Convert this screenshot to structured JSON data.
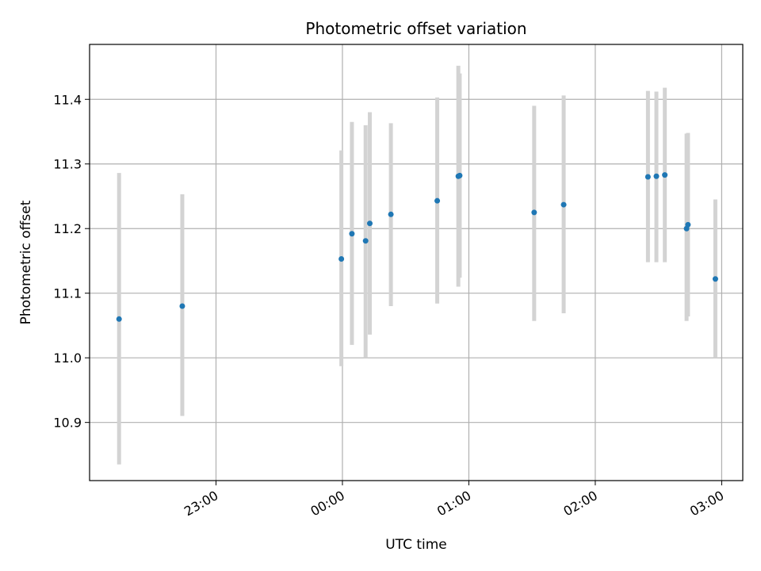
{
  "chart_data": {
    "type": "scatter",
    "title": "Photometric offset variation",
    "xlabel": "UTC time",
    "ylabel": "Photometric offset",
    "x_unit": "UTC",
    "x_ticks": [
      "23:00",
      "00:00",
      "01:00",
      "02:00",
      "03:00"
    ],
    "xlim": [
      "22:00:00",
      "03:10:00"
    ],
    "y_ticks": [
      10.9,
      11.0,
      11.1,
      11.2,
      11.3,
      11.4
    ],
    "ylim": [
      10.81,
      11.485
    ],
    "grid": true,
    "colors": {
      "point": "#1f77b4",
      "errorbar": "#d3d3d3",
      "grid": "#b0b0b0",
      "axes": "#000000"
    },
    "series": [
      {
        "points": [
          {
            "x": "22:14:00",
            "y": 11.06,
            "ylow": 10.835,
            "yhigh": 11.286
          },
          {
            "x": "22:44:00",
            "y": 11.08,
            "ylow": 10.91,
            "yhigh": 11.253
          },
          {
            "x": "23:59:30",
            "y": 11.153,
            "ylow": 10.987,
            "yhigh": 11.321
          },
          {
            "x": "00:04:30",
            "y": 11.192,
            "ylow": 11.02,
            "yhigh": 11.365
          },
          {
            "x": "00:11:00",
            "y": 11.181,
            "ylow": 11.0,
            "yhigh": 11.36
          },
          {
            "x": "00:13:00",
            "y": 11.208,
            "ylow": 11.036,
            "yhigh": 11.38
          },
          {
            "x": "00:23:00",
            "y": 11.222,
            "ylow": 11.08,
            "yhigh": 11.363
          },
          {
            "x": "00:45:00",
            "y": 11.243,
            "ylow": 11.084,
            "yhigh": 11.403
          },
          {
            "x": "00:55:00",
            "y": 11.281,
            "ylow": 11.11,
            "yhigh": 11.452
          },
          {
            "x": "00:55:40",
            "y": 11.282,
            "ylow": 11.124,
            "yhigh": 11.44
          },
          {
            "x": "01:31:00",
            "y": 11.225,
            "ylow": 11.057,
            "yhigh": 11.39
          },
          {
            "x": "01:45:00",
            "y": 11.237,
            "ylow": 11.069,
            "yhigh": 11.406
          },
          {
            "x": "02:25:00",
            "y": 11.28,
            "ylow": 11.148,
            "yhigh": 11.413
          },
          {
            "x": "02:29:00",
            "y": 11.281,
            "ylow": 11.148,
            "yhigh": 11.412
          },
          {
            "x": "02:33:00",
            "y": 11.283,
            "ylow": 11.148,
            "yhigh": 11.418
          },
          {
            "x": "02:43:20",
            "y": 11.2,
            "ylow": 11.057,
            "yhigh": 11.347
          },
          {
            "x": "02:44:00",
            "y": 11.206,
            "ylow": 11.064,
            "yhigh": 11.348
          },
          {
            "x": "02:57:00",
            "y": 11.122,
            "ylow": 11.0,
            "yhigh": 11.245
          }
        ]
      }
    ]
  }
}
